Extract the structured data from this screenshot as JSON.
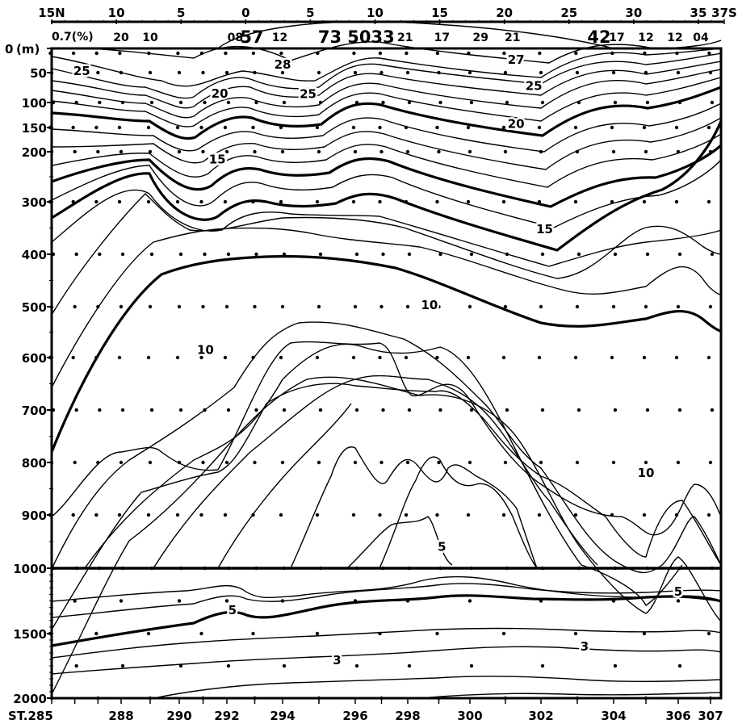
{
  "chart_data": {
    "type": "line",
    "title": "",
    "latitude_axis": {
      "ticks": [
        {
          "label": "15N",
          "lat": 15
        },
        {
          "label": "10",
          "lat": 10
        },
        {
          "label": "5",
          "lat": 5
        },
        {
          "label": "0",
          "lat": 0
        },
        {
          "label": "5",
          "lat": -5
        },
        {
          "label": "10",
          "lat": -10
        },
        {
          "label": "15",
          "lat": -15
        },
        {
          "label": "20",
          "lat": -20
        },
        {
          "label": "25",
          "lat": -25
        },
        {
          "label": "30",
          "lat": -30
        },
        {
          "label": "35",
          "lat": -35
        },
        {
          "label": "37S",
          "lat": -37
        }
      ]
    },
    "cloud_row": {
      "prefix": "0.7(%)",
      "values": [
        {
          "label": "20",
          "station": 288
        },
        {
          "label": "10",
          "station": 289
        },
        {
          "label": "08",
          "station": 292.3
        },
        {
          "label": "57",
          "station": 292.9
        },
        {
          "label": "12",
          "station": 293.9
        },
        {
          "label": "73",
          "station": 295.3
        },
        {
          "label": "5033",
          "station": 296.6
        },
        {
          "label": "21",
          "station": 297.9
        },
        {
          "label": "17",
          "station": 299.1
        },
        {
          "label": "29",
          "station": 300.3
        },
        {
          "label": "21",
          "station": 301.2
        },
        {
          "label": "42",
          "station": 303.6
        },
        {
          "label": "17",
          "station": 304.1
        },
        {
          "label": "12",
          "station": 305.0
        },
        {
          "label": "12",
          "station": 305.9
        },
        {
          "label": "04",
          "station": 306.7
        }
      ]
    },
    "y_axis": {
      "unit": "(m)",
      "upper_ticks": [
        0,
        50,
        100,
        150,
        200,
        300,
        400,
        500,
        600,
        700,
        800,
        900,
        1000
      ],
      "lower_ticks": [
        1500,
        2000
      ]
    },
    "x_axis": {
      "prefix": "ST.",
      "station_labels": [
        285,
        288,
        290,
        292,
        294,
        296,
        298,
        300,
        302,
        304,
        306,
        307
      ]
    },
    "isotherm_labels": [
      {
        "text": "28",
        "station": 294,
        "depth": 33
      },
      {
        "text": "27",
        "station": 301.3,
        "depth": 23
      },
      {
        "text": "25",
        "station": 286.3,
        "depth": 47
      },
      {
        "text": "25",
        "station": 294.7,
        "depth": 86
      },
      {
        "text": "25",
        "station": 301.8,
        "depth": 72
      },
      {
        "text": "20",
        "station": 291.7,
        "depth": 85
      },
      {
        "text": "20",
        "station": 301.3,
        "depth": 143
      },
      {
        "text": "15",
        "station": 291.6,
        "depth": 215
      },
      {
        "text": "15",
        "station": 302.1,
        "depth": 352
      },
      {
        "text": "10",
        "station": 291.1,
        "depth": 585
      },
      {
        "text": "10",
        "station": 298.7,
        "depth": 497
      },
      {
        "text": "10",
        "station": 305.0,
        "depth": 820
      },
      {
        "text": "5",
        "station": 299.1,
        "depth": 960
      },
      {
        "text": "5",
        "station": 306.0,
        "depth": 1180
      },
      {
        "text": "5",
        "station": 292.2,
        "depth": 1320
      },
      {
        "text": "3",
        "station": 295.5,
        "depth": 1705
      },
      {
        "text": "3",
        "station": 303.2,
        "depth": 1600
      }
    ]
  }
}
